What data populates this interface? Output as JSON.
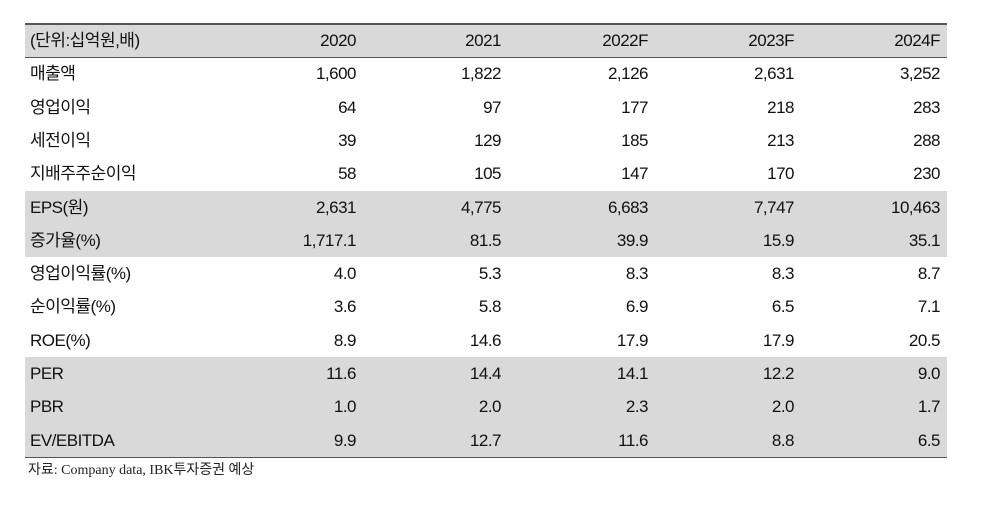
{
  "table": {
    "header": [
      "(단위:십억원,배)",
      "2020",
      "2021",
      "2022F",
      "2023F",
      "2024F"
    ],
    "rows": [
      [
        "매출액",
        "1,600",
        "1,822",
        "2,126",
        "2,631",
        "3,252"
      ],
      [
        "영업이익",
        "64",
        "97",
        "177",
        "218",
        "283"
      ],
      [
        "세전이익",
        "39",
        "129",
        "185",
        "213",
        "288"
      ],
      [
        "지배주주순이익",
        "58",
        "105",
        "147",
        "170",
        "230"
      ],
      [
        "EPS(원)",
        "2,631",
        "4,775",
        "6,683",
        "7,747",
        "10,463"
      ],
      [
        "증가율(%)",
        "1,717.1",
        "81.5",
        "39.9",
        "15.9",
        "35.1"
      ],
      [
        "영업이익률(%)",
        "4.0",
        "5.3",
        "8.3",
        "8.3",
        "8.7"
      ],
      [
        "순이익률(%)",
        "3.6",
        "5.8",
        "6.9",
        "6.5",
        "7.1"
      ],
      [
        "ROE(%)",
        "8.9",
        "14.6",
        "17.9",
        "17.9",
        "20.5"
      ],
      [
        "PER",
        "11.6",
        "14.4",
        "14.1",
        "12.2",
        "9.0"
      ],
      [
        "PBR",
        "1.0",
        "2.0",
        "2.3",
        "2.0",
        "1.7"
      ],
      [
        "EV/EBITDA",
        "9.9",
        "12.7",
        "11.6",
        "8.8",
        "6.5"
      ]
    ]
  },
  "source": "자료: Company data, IBK투자증권 예상"
}
